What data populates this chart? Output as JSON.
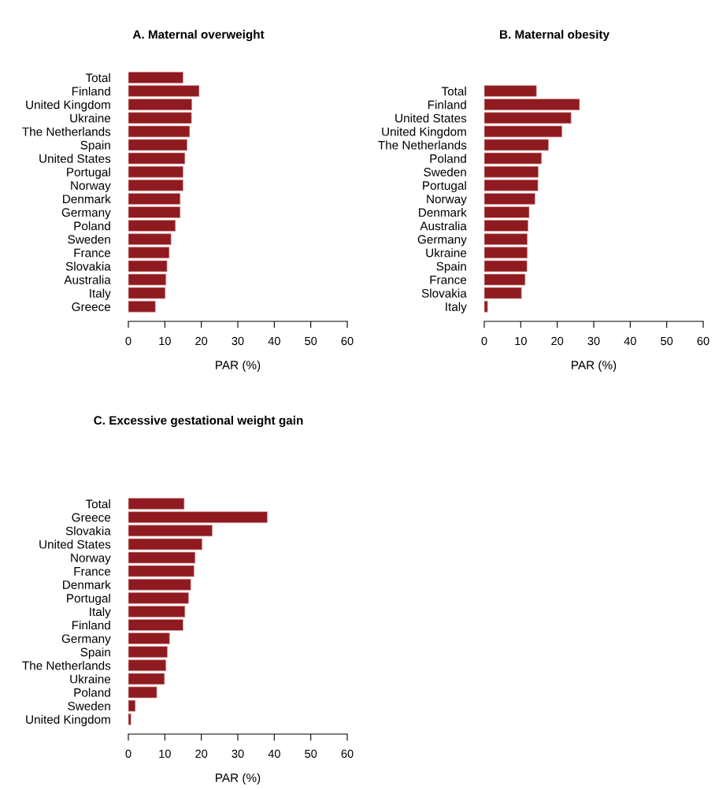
{
  "chart_data": [
    {
      "type": "bar",
      "orientation": "horizontal",
      "title": "A. Maternal overweight",
      "xlabel": "PAR (%)",
      "color": "#8f1a1f",
      "xlim": [
        0,
        60
      ],
      "xticks": [
        0,
        10,
        20,
        30,
        40,
        50,
        60
      ],
      "categories": [
        "Total",
        "Finland",
        "United Kingdom",
        "Ukraine",
        "The Netherlands",
        "Spain",
        "United States",
        "Portugal",
        "Norway",
        "Denmark",
        "Germany",
        "Poland",
        "Sweden",
        "France",
        "Slovakia",
        "Australia",
        "Italy",
        "Greece"
      ],
      "values": [
        15.0,
        19.4,
        17.4,
        17.3,
        16.8,
        16.1,
        15.5,
        15.0,
        15.0,
        14.2,
        14.2,
        12.9,
        11.7,
        11.2,
        10.6,
        10.3,
        10.1,
        7.4
      ]
    },
    {
      "type": "bar",
      "orientation": "horizontal",
      "title": "B. Maternal obesity",
      "xlabel": "PAR (%)",
      "color": "#8f1a1f",
      "xlim": [
        0,
        60
      ],
      "xticks": [
        0,
        10,
        20,
        30,
        40,
        50,
        60
      ],
      "categories": [
        "Total",
        "Finland",
        "United States",
        "United Kingdom",
        "The Netherlands",
        "Poland",
        "Sweden",
        "Portugal",
        "Norway",
        "Denmark",
        "Australia",
        "Germany",
        "Ukraine",
        "Spain",
        "France",
        "Slovakia",
        "Italy"
      ],
      "values": [
        14.3,
        26.1,
        23.8,
        21.3,
        17.6,
        15.7,
        14.8,
        14.7,
        13.9,
        12.3,
        12.0,
        11.8,
        11.8,
        11.7,
        11.2,
        10.2,
        0.9
      ]
    },
    {
      "type": "bar",
      "orientation": "horizontal",
      "title": "C. Excessive gestational weight gain",
      "xlabel": "PAR (%)",
      "color": "#8f1a1f",
      "xlim": [
        0,
        60
      ],
      "xticks": [
        0,
        10,
        20,
        30,
        40,
        50,
        60
      ],
      "categories": [
        "Total",
        "Greece",
        "Slovakia",
        "United States",
        "Norway",
        "France",
        "Denmark",
        "Portugal",
        "Italy",
        "Finland",
        "Germany",
        "Spain",
        "The Netherlands",
        "Ukraine",
        "Poland",
        "Sweden",
        "United Kingdom"
      ],
      "values": [
        15.3,
        38.1,
        23.0,
        20.2,
        18.3,
        18.0,
        17.1,
        16.5,
        15.5,
        15.0,
        11.3,
        10.7,
        10.3,
        9.9,
        7.8,
        1.9,
        0.7
      ]
    }
  ]
}
